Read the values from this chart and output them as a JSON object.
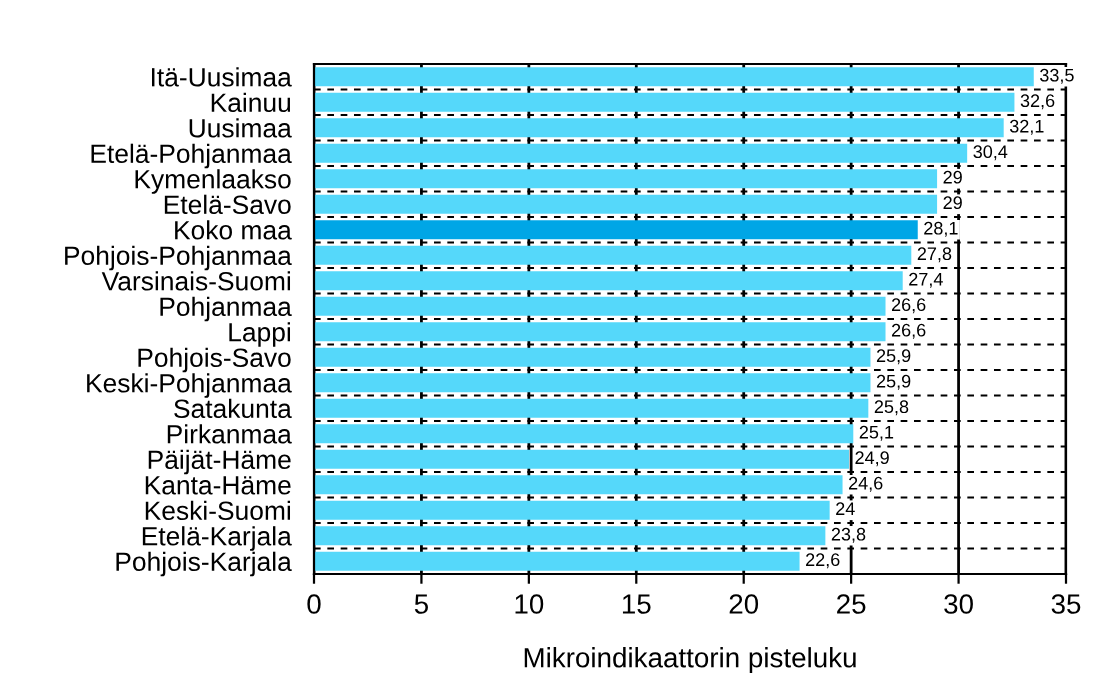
{
  "chart_data": {
    "type": "bar",
    "orientation": "horizontal",
    "xlabel": "Mikroindikaattorin pisteluku",
    "categories": [
      "Itä-Uusimaa",
      "Kainuu",
      "Uusimaa",
      "Etelä-Pohjanmaa",
      "Kymenlaakso",
      "Etelä-Savo",
      "Koko maa",
      "Pohjois-Pohjanmaa",
      "Varsinais-Suomi",
      "Pohjanmaa",
      "Lappi",
      "Pohjois-Savo",
      "Keski-Pohjanmaa",
      "Satakunta",
      "Pirkanmaa",
      "Päijät-Häme",
      "Kanta-Häme",
      "Keski-Suomi",
      "Etelä-Karjala",
      "Pohjois-Karjala"
    ],
    "values": [
      33.5,
      32.6,
      32.1,
      30.4,
      29,
      29,
      28.1,
      27.8,
      27.4,
      26.6,
      26.6,
      25.9,
      25.9,
      25.8,
      25.1,
      24.9,
      24.6,
      24,
      23.8,
      22.6
    ],
    "value_labels": [
      "33,5",
      "32,6",
      "32,1",
      "30,4",
      "29",
      "29",
      "28,1",
      "27,8",
      "27,4",
      "26,6",
      "26,6",
      "25,9",
      "25,9",
      "25,8",
      "25,1",
      "24,9",
      "24,6",
      "24",
      "23,8",
      "22,6"
    ],
    "colors": [
      "#55d8fa",
      "#55d8fa",
      "#55d8fa",
      "#55d8fa",
      "#55d8fa",
      "#55d8fa",
      "#00a6e6",
      "#55d8fa",
      "#55d8fa",
      "#55d8fa",
      "#55d8fa",
      "#55d8fa",
      "#55d8fa",
      "#55d8fa",
      "#55d8fa",
      "#55d8fa",
      "#55d8fa",
      "#55d8fa",
      "#55d8fa",
      "#55d8fa"
    ],
    "xlim": [
      0,
      35
    ],
    "xticks": [
      0,
      5,
      10,
      15,
      20,
      25,
      30,
      35
    ],
    "grid": true
  }
}
